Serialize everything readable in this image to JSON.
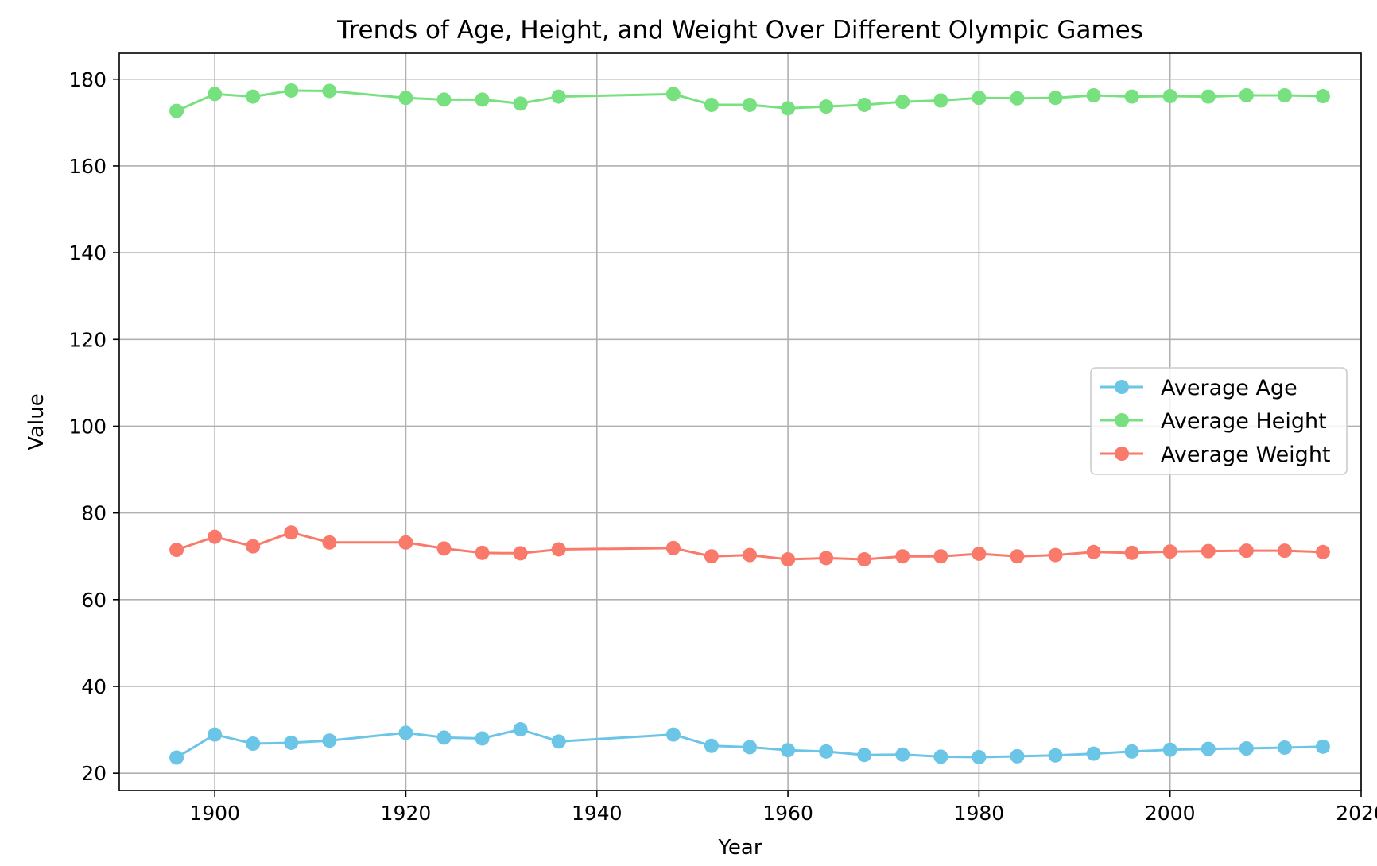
{
  "chart_data": {
    "type": "line",
    "title": "Trends of Age, Height, and Weight Over Different Olympic Games",
    "xlabel": "Year",
    "ylabel": "Value",
    "xlim": [
      1890,
      2020
    ],
    "ylim": [
      16,
      186
    ],
    "xticks": [
      1900,
      1920,
      1940,
      1960,
      1980,
      2000,
      2020
    ],
    "yticks": [
      20,
      40,
      60,
      80,
      100,
      120,
      140,
      160,
      180
    ],
    "grid": true,
    "legend_position": "center-right",
    "x": [
      1896,
      1900,
      1904,
      1908,
      1912,
      1920,
      1924,
      1928,
      1932,
      1936,
      1948,
      1952,
      1956,
      1960,
      1964,
      1968,
      1972,
      1976,
      1980,
      1984,
      1988,
      1992,
      1996,
      2000,
      2004,
      2008,
      2012,
      2016
    ],
    "series": [
      {
        "name": "Average Age",
        "color": "#6bc5e6",
        "values": [
          23.6,
          28.9,
          26.8,
          27.0,
          27.5,
          29.3,
          28.2,
          28.0,
          30.1,
          27.3,
          28.9,
          26.3,
          26.0,
          25.3,
          25.0,
          24.2,
          24.3,
          23.8,
          23.7,
          23.9,
          24.1,
          24.5,
          25.0,
          25.4,
          25.6,
          25.7,
          25.9,
          26.1
        ]
      },
      {
        "name": "Average Height",
        "color": "#77e07f",
        "values": [
          172.7,
          176.6,
          176.0,
          177.4,
          177.3,
          175.7,
          175.3,
          175.3,
          174.4,
          176.0,
          176.6,
          174.1,
          174.1,
          173.3,
          173.7,
          174.1,
          174.8,
          175.1,
          175.7,
          175.6,
          175.7,
          176.3,
          176.0,
          176.1,
          176.0,
          176.3,
          176.3,
          176.1
        ]
      },
      {
        "name": "Average Weight",
        "color": "#f97a6a",
        "values": [
          71.5,
          74.5,
          72.3,
          75.5,
          73.2,
          73.2,
          71.8,
          70.8,
          70.7,
          71.6,
          71.9,
          70.0,
          70.3,
          69.3,
          69.6,
          69.3,
          70.0,
          70.0,
          70.6,
          70.0,
          70.3,
          71.0,
          70.8,
          71.1,
          71.2,
          71.3,
          71.3,
          71.0
        ]
      }
    ]
  }
}
